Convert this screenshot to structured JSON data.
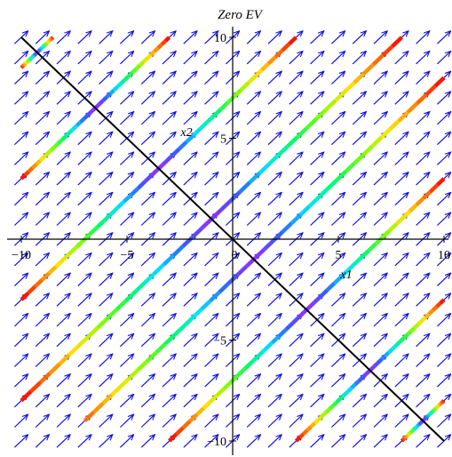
{
  "chart_data": {
    "type": "phase-portrait",
    "title": "Zero EV",
    "xlabel": "x1",
    "ylabel": "x2",
    "xlim": [
      -10,
      10
    ],
    "ylim": [
      -10,
      10
    ],
    "x_ticks": [
      -10,
      -5,
      0,
      5,
      10
    ],
    "y_ticks": [
      -10,
      -5,
      0,
      5,
      10
    ],
    "x_tick_labels": [
      "−10",
      "−5",
      "0",
      "5",
      "10"
    ],
    "y_tick_labels": [
      "−10",
      "−5",
      "5",
      "10"
    ],
    "grid": false,
    "vector_field": {
      "direction": [
        1,
        1
      ],
      "color": "#1010e0",
      "spacing": 1
    },
    "equilibrium_line": {
      "x": [
        -10,
        10
      ],
      "y": [
        10,
        -10
      ],
      "color": "#000000"
    },
    "trajectories": [
      {
        "x": [
          -8.5,
          -10
        ],
        "y": [
          10,
          8.5
        ]
      },
      {
        "x": [
          -3,
          -10
        ],
        "y": [
          10,
          3
        ]
      },
      {
        "x": [
          3,
          -10
        ],
        "y": [
          10,
          -3
        ]
      },
      {
        "x": [
          8,
          -10
        ],
        "y": [
          10,
          -8
        ]
      },
      {
        "x": [
          10,
          -7
        ],
        "y": [
          8,
          -9
        ]
      },
      {
        "x": [
          10,
          -3
        ],
        "y": [
          3,
          -10
        ]
      },
      {
        "x": [
          10,
          3
        ],
        "y": [
          -3,
          -10
        ]
      },
      {
        "x": [
          10,
          8
        ],
        "y": [
          -8,
          -10
        ]
      }
    ],
    "trajectory_colormap": [
      "#ff0000",
      "#ff7a00",
      "#ffe600",
      "#7dff00",
      "#00ff66",
      "#00e5ff",
      "#3060ff",
      "#9a2cff"
    ]
  }
}
